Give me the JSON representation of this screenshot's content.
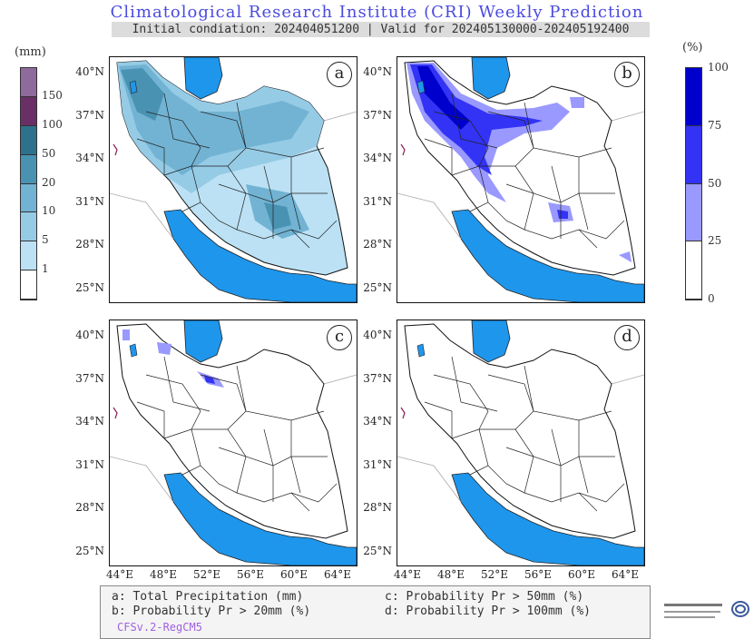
{
  "title": "Climatological Research Institute (CRI) Weekly Prediction",
  "subtitle": "Initial condiation: 202404051200 | Valid for 202405130000-202405192400",
  "left_scale": {
    "unit": "(mm)",
    "ticks": [
      "150",
      "100",
      "50",
      "20",
      "10",
      "5",
      "1"
    ],
    "colors": [
      "#8f6a9c",
      "#6a2f67",
      "#2e718c",
      "#4a92b2",
      "#72b3d3",
      "#96cbe5",
      "#bce1f4",
      "#ffffff"
    ]
  },
  "right_scale": {
    "unit": "(%)",
    "ticks": [
      "100",
      "75",
      "50",
      "25",
      "0"
    ],
    "colors": [
      "#0000cc",
      "#3333f5",
      "#9999ff",
      "#ffffff"
    ]
  },
  "panels": [
    {
      "id": "a",
      "label": "a"
    },
    {
      "id": "b",
      "label": "b"
    },
    {
      "id": "c",
      "label": "c"
    },
    {
      "id": "d",
      "label": "d"
    }
  ],
  "lat_labels": [
    "40°N",
    "37°N",
    "34°N",
    "31°N",
    "28°N",
    "25°N"
  ],
  "lon_labels": [
    "44°E",
    "48°E",
    "52°E",
    "56°E",
    "60°E",
    "64°E"
  ],
  "legend": {
    "a": "a: Total Precipitation (mm)",
    "b": "b: Probability Pr > 20mm (%)",
    "c": "c: Probability Pr > 50mm (%)",
    "d": "d: Probability Pr > 100mm (%)",
    "model": "CFSv.2-RegCM5"
  },
  "colors": {
    "sea": "#1e96ec",
    "title": "#4a4ae0",
    "model": "#a060e0"
  },
  "logo": {
    "icon": "cri-logo-icon"
  }
}
